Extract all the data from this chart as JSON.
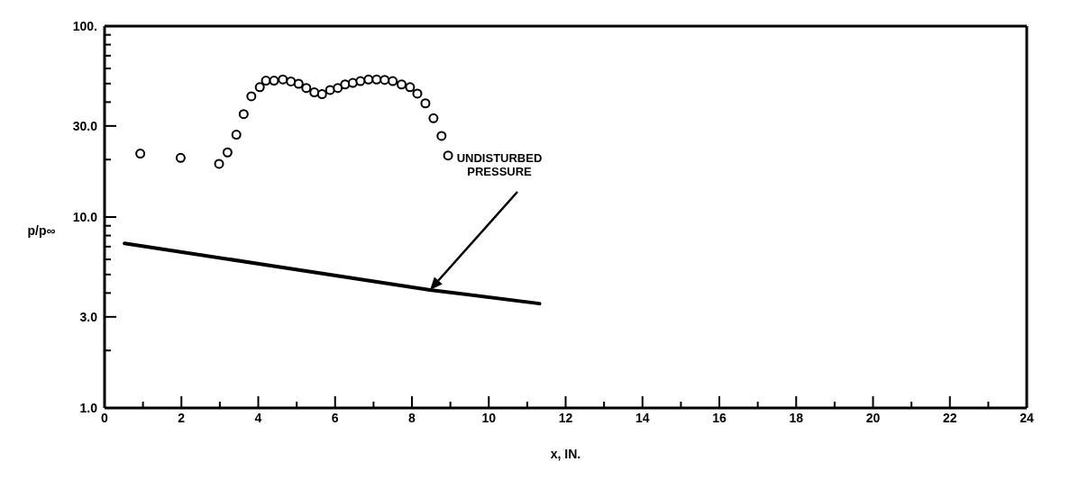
{
  "chart_data": {
    "type": "scatter",
    "xlabel": "x, IN.",
    "ylabel": "p/p∞",
    "log": "y",
    "xlim": [
      0,
      24
    ],
    "xticks": [
      0,
      {
        "value": 1,
        "label": null
      },
      2,
      {
        "value": 3,
        "label": null
      },
      4,
      {
        "value": 5,
        "label": null
      },
      6,
      {
        "value": 7,
        "label": null
      },
      8,
      {
        "value": 9,
        "label": null
      },
      10,
      {
        "value": 11,
        "label": null
      },
      12,
      {
        "value": 13,
        "label": null
      },
      14,
      {
        "value": 15,
        "label": null
      },
      16,
      {
        "value": 17,
        "label": null
      },
      18,
      {
        "value": 19,
        "label": null
      },
      20,
      {
        "value": 21,
        "label": null
      },
      22,
      {
        "value": 23,
        "label": null
      },
      24
    ],
    "ylim": [
      1,
      100
    ],
    "yticks": [
      {
        "value": 1,
        "label": "1.0"
      },
      {
        "value": 2,
        "label": null
      },
      {
        "value": 3,
        "label": "3.0"
      },
      {
        "value": 4,
        "label": null
      },
      {
        "value": 5,
        "label": null
      },
      {
        "value": 6,
        "label": null
      },
      {
        "value": 7,
        "label": null
      },
      {
        "value": 8,
        "label": null
      },
      {
        "value": 9,
        "label": null
      },
      {
        "value": 10,
        "label": "10.0"
      },
      {
        "value": 20,
        "label": null
      },
      {
        "value": 30,
        "label": "30.0"
      },
      {
        "value": 40,
        "label": null
      },
      {
        "value": 50,
        "label": null
      },
      {
        "value": 60,
        "label": null
      },
      {
        "value": 70,
        "label": null
      },
      {
        "value": 80,
        "label": null
      },
      {
        "value": 90,
        "label": null
      },
      {
        "value": 100,
        "label": "100."
      }
    ],
    "marker": "circle",
    "series": [
      {
        "color": "#000000",
        "x": [
          0.93,
          1.98,
          2.98,
          3.2,
          3.43,
          3.62,
          3.82,
          4.04,
          4.2,
          4.41,
          4.64,
          4.85,
          5.05,
          5.25,
          5.46,
          5.66,
          5.87,
          6.07,
          6.26,
          6.46,
          6.66,
          6.87,
          7.08,
          7.29,
          7.5,
          7.73,
          7.95,
          8.14,
          8.35,
          8.56,
          8.77,
          8.94
        ],
        "values": [
          21.5,
          20.4,
          19,
          21.8,
          27,
          34.6,
          42.9,
          47.9,
          51.8,
          51.8,
          52.6,
          51.3,
          49.9,
          47.4,
          45,
          44,
          46.3,
          47.4,
          49.5,
          50.4,
          51.5,
          52.5,
          52.5,
          52.3,
          51.5,
          49.5,
          47.9,
          44.3,
          39.4,
          32.9,
          26.6,
          21
        ]
      },
      {
        "type": "line",
        "color": "#000000",
        "marker": "none",
        "line_style": "solid",
        "x": [
          0.52,
          4.29,
          8.47,
          11.32
        ],
        "values": [
          7.28,
          5.58,
          4.15,
          3.52
        ]
      }
    ],
    "annotations": [
      "UNDISTURBED PRESSURE"
    ]
  }
}
